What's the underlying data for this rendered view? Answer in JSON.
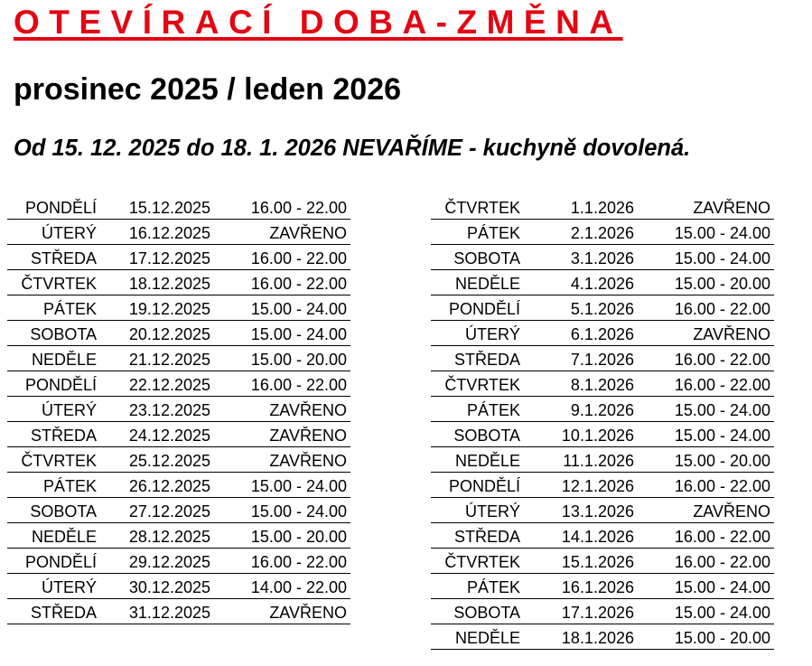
{
  "header": {
    "title": "OTEVÍRACÍ DOBA-ZMĚNA",
    "title_color": "#e30613",
    "subtitle": "prosinec 2025 / leden 2026",
    "notice": "Od 15. 12. 2025 do 18. 1. 2026 NEVAŘÍME - kuchyně dovolená."
  },
  "december": [
    {
      "day": "PONDĚLÍ",
      "date": "15.12.2025",
      "hours": "16.00 - 22.00"
    },
    {
      "day": "ÚTERÝ",
      "date": "16.12.2025",
      "hours": "ZAVŘENO"
    },
    {
      "day": "STŘEDA",
      "date": "17.12.2025",
      "hours": "16.00 - 22.00"
    },
    {
      "day": "ČTVRTEK",
      "date": "18.12.2025",
      "hours": "16.00 - 22.00"
    },
    {
      "day": "PÁTEK",
      "date": "19.12.2025",
      "hours": "15.00 - 24.00"
    },
    {
      "day": "SOBOTA",
      "date": "20.12.2025",
      "hours": "15.00 - 24.00"
    },
    {
      "day": "NEDĚLE",
      "date": "21.12.2025",
      "hours": "15.00 - 20.00"
    },
    {
      "day": "PONDĚLÍ",
      "date": "22.12.2025",
      "hours": "16.00 - 22.00"
    },
    {
      "day": "ÚTERÝ",
      "date": "23.12.2025",
      "hours": "ZAVŘENO"
    },
    {
      "day": "STŘEDA",
      "date": "24.12.2025",
      "hours": "ZAVŘENO"
    },
    {
      "day": "ČTVRTEK",
      "date": "25.12.2025",
      "hours": "ZAVŘENO"
    },
    {
      "day": "PÁTEK",
      "date": "26.12.2025",
      "hours": "15.00 - 24.00"
    },
    {
      "day": "SOBOTA",
      "date": "27.12.2025",
      "hours": "15.00 - 24.00"
    },
    {
      "day": "NEDĚLE",
      "date": "28.12.2025",
      "hours": "15.00 - 20.00"
    },
    {
      "day": "PONDĚLÍ",
      "date": "29.12.2025",
      "hours": "16.00 - 22.00"
    },
    {
      "day": "ÚTERÝ",
      "date": "30.12.2025",
      "hours": "14.00 - 22.00"
    },
    {
      "day": "STŘEDA",
      "date": "31.12.2025",
      "hours": "ZAVŘENO"
    }
  ],
  "january": [
    {
      "day": "ČTVRTEK",
      "date": "1.1.2026",
      "hours": "ZAVŘENO"
    },
    {
      "day": "PÁTEK",
      "date": "2.1.2026",
      "hours": "15.00 - 24.00"
    },
    {
      "day": "SOBOTA",
      "date": "3.1.2026",
      "hours": "15.00 - 24.00"
    },
    {
      "day": "NEDĚLE",
      "date": "4.1.2026",
      "hours": "15.00 - 20.00"
    },
    {
      "day": "PONDĚLÍ",
      "date": "5.1.2026",
      "hours": "16.00 - 22.00"
    },
    {
      "day": "ÚTERÝ",
      "date": "6.1.2026",
      "hours": "ZAVŘENO"
    },
    {
      "day": "STŘEDA",
      "date": "7.1.2026",
      "hours": "16.00 - 22.00"
    },
    {
      "day": "ČTVRTEK",
      "date": "8.1.2026",
      "hours": "16.00 - 22.00"
    },
    {
      "day": "PÁTEK",
      "date": "9.1.2026",
      "hours": "15.00 - 24.00"
    },
    {
      "day": "SOBOTA",
      "date": "10.1.2026",
      "hours": "15.00 - 24.00"
    },
    {
      "day": "NEDĚLE",
      "date": "11.1.2026",
      "hours": "15.00 - 20.00"
    },
    {
      "day": "PONDĚLÍ",
      "date": "12.1.2026",
      "hours": "16.00 - 22.00"
    },
    {
      "day": "ÚTERÝ",
      "date": "13.1.2026",
      "hours": "ZAVŘENO"
    },
    {
      "day": "STŘEDA",
      "date": "14.1.2026",
      "hours": "16.00 - 22.00"
    },
    {
      "day": "ČTVRTEK",
      "date": "15.1.2026",
      "hours": "16.00 - 22.00"
    },
    {
      "day": "PÁTEK",
      "date": "16.1.2026",
      "hours": "15.00 - 24.00"
    },
    {
      "day": "SOBOTA",
      "date": "17.1.2026",
      "hours": "15.00 - 24.00"
    },
    {
      "day": "NEDĚLE",
      "date": "18.1.2026",
      "hours": "15.00 - 20.00"
    }
  ]
}
